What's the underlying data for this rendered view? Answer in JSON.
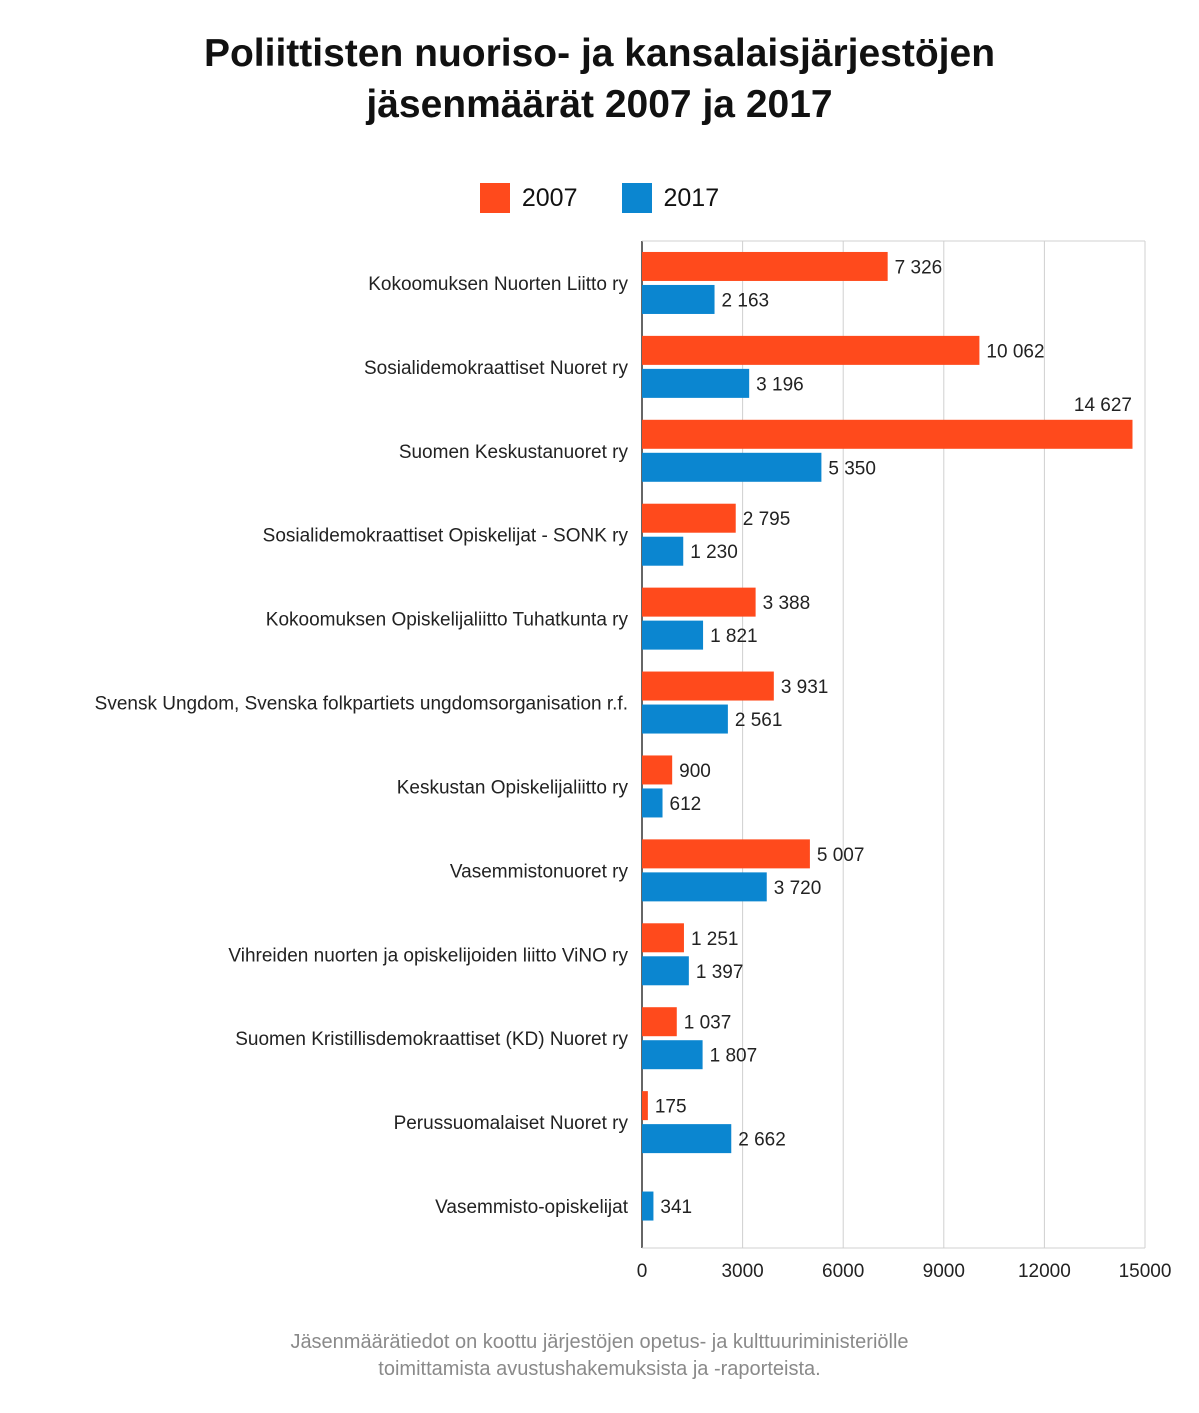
{
  "chart_data": {
    "type": "bar",
    "orientation": "horizontal",
    "title": [
      "Poliittisten nuoriso- ja kansalaisjärjestöjen",
      "jäsenmäärät 2007 ja 2017"
    ],
    "legend_position": "top",
    "grid": true,
    "xlim": [
      0,
      15000
    ],
    "x_ticks": [
      0,
      3000,
      6000,
      9000,
      12000,
      15000
    ],
    "x_tick_labels": [
      "0",
      "3000",
      "6000",
      "9000",
      "12000",
      "15000"
    ],
    "categories": [
      "Kokoomuksen Nuorten Liitto ry",
      "Sosialidemokraattiset Nuoret ry",
      "Suomen Keskustanuoret ry",
      "Sosialidemokraattiset Opiskelijat - SONK ry",
      "Kokoomuksen Opiskelijaliitto Tuhatkunta ry",
      "Svensk Ungdom, Svenska folkpartiets ungdomsorganisation r.f.",
      "Keskustan Opiskelijaliitto ry",
      "Vasemmistonuoret ry",
      "Vihreiden nuorten ja opiskelijoiden liitto ViNO ry",
      "Suomen Kristillisdemokraattiset (KD) Nuoret ry",
      "Perussuomalaiset Nuoret ry",
      "Vasemmisto-opiskelijat"
    ],
    "series": [
      {
        "name": "2007",
        "color": "#ff4a1c",
        "values": [
          7326,
          10062,
          14627,
          2795,
          3388,
          3931,
          900,
          5007,
          1251,
          1037,
          175,
          null
        ],
        "labels": [
          "7 326",
          "10 062",
          "14 627",
          "2 795",
          "3 388",
          "3 931",
          "900",
          "5 007",
          "1 251",
          "1 037",
          "175",
          ""
        ]
      },
      {
        "name": "2017",
        "color": "#0b86d0",
        "values": [
          2163,
          3196,
          5350,
          1230,
          1821,
          2561,
          612,
          3720,
          1397,
          1807,
          2662,
          341
        ],
        "labels": [
          "2 163",
          "3 196",
          "5 350",
          "1 230",
          "1 821",
          "2 561",
          "612",
          "3 720",
          "1 397",
          "1 807",
          "2 662",
          "341"
        ]
      }
    ],
    "footnote": [
      "Jäsenmäärätiedot on koottu järjestöjen opetus- ja kulttuuriministeriölle",
      "toimittamista avustushakemuksista ja -raporteista."
    ]
  }
}
